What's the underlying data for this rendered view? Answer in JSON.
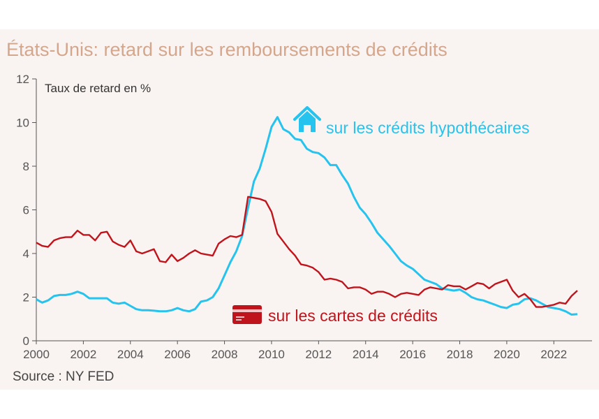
{
  "title": "États-Unis: retard sur les remboursements de crédits",
  "source": "Source : NY FED",
  "colors": {
    "mortgage": "#25c3ee",
    "credit_cards": "#c0141c",
    "title": "#d4a78d",
    "axis": "#555555"
  },
  "icons": {
    "mortgage": "house-icon",
    "credit_cards": "credit-card-icon"
  },
  "chart_data": {
    "type": "line",
    "title": "États-Unis: retard sur les remboursements de crédits",
    "xlabel": "",
    "ylabel": "Taux de retard en %",
    "xlim": [
      2000,
      2023.1
    ],
    "ylim": [
      0,
      12
    ],
    "xticks": [
      2000,
      2002,
      2004,
      2006,
      2008,
      2010,
      2012,
      2014,
      2016,
      2018,
      2020,
      2022
    ],
    "yticks": [
      0,
      2,
      4,
      6,
      8,
      10,
      12
    ],
    "grid": false,
    "series": [
      {
        "name": "sur les crédits hypothécaires",
        "color": "#25c3ee",
        "x": [
          2000.0,
          2000.25,
          2000.5,
          2000.75,
          2001.0,
          2001.25,
          2001.5,
          2001.75,
          2002.0,
          2002.25,
          2002.5,
          2002.75,
          2003.0,
          2003.25,
          2003.5,
          2003.75,
          2004.0,
          2004.25,
          2004.5,
          2004.75,
          2005.0,
          2005.25,
          2005.5,
          2005.75,
          2006.0,
          2006.25,
          2006.5,
          2006.75,
          2007.0,
          2007.25,
          2007.5,
          2007.75,
          2008.0,
          2008.25,
          2008.5,
          2008.75,
          2009.0,
          2009.25,
          2009.5,
          2009.75,
          2010.0,
          2010.25,
          2010.5,
          2010.75,
          2011.0,
          2011.25,
          2011.5,
          2011.75,
          2012.0,
          2012.25,
          2012.5,
          2012.75,
          2013.0,
          2013.25,
          2013.5,
          2013.75,
          2014.0,
          2014.25,
          2014.5,
          2014.75,
          2015.0,
          2015.25,
          2015.5,
          2015.75,
          2016.0,
          2016.25,
          2016.5,
          2016.75,
          2017.0,
          2017.25,
          2017.5,
          2017.75,
          2018.0,
          2018.25,
          2018.5,
          2018.75,
          2019.0,
          2019.25,
          2019.5,
          2019.75,
          2020.0,
          2020.25,
          2020.5,
          2020.75,
          2021.0,
          2021.25,
          2021.5,
          2021.75,
          2022.0,
          2022.25,
          2022.5,
          2022.75,
          2023.0
        ],
        "values": [
          1.9,
          1.75,
          1.85,
          2.05,
          2.1,
          2.1,
          2.15,
          2.25,
          2.15,
          1.95,
          1.95,
          1.95,
          1.95,
          1.75,
          1.7,
          1.75,
          1.6,
          1.45,
          1.4,
          1.4,
          1.38,
          1.35,
          1.35,
          1.4,
          1.5,
          1.4,
          1.35,
          1.45,
          1.8,
          1.85,
          2.0,
          2.4,
          3.0,
          3.6,
          4.1,
          4.8,
          6.1,
          7.3,
          7.9,
          8.8,
          9.8,
          10.25,
          9.7,
          9.55,
          9.25,
          9.2,
          8.8,
          8.65,
          8.6,
          8.4,
          8.05,
          8.05,
          7.6,
          7.2,
          6.6,
          6.1,
          5.8,
          5.4,
          4.95,
          4.65,
          4.35,
          4.0,
          3.65,
          3.45,
          3.3,
          3.05,
          2.8,
          2.7,
          2.6,
          2.4,
          2.35,
          2.3,
          2.35,
          2.2,
          2.0,
          1.9,
          1.85,
          1.75,
          1.65,
          1.55,
          1.5,
          1.65,
          1.7,
          1.9,
          1.95,
          1.85,
          1.7,
          1.55,
          1.5,
          1.45,
          1.35,
          1.2,
          1.22
        ]
      },
      {
        "name": "sur les cartes de crédits",
        "color": "#c0141c",
        "x": [
          2000.0,
          2000.25,
          2000.5,
          2000.75,
          2001.0,
          2001.25,
          2001.5,
          2001.75,
          2002.0,
          2002.25,
          2002.5,
          2002.75,
          2003.0,
          2003.25,
          2003.5,
          2003.75,
          2004.0,
          2004.25,
          2004.5,
          2004.75,
          2005.0,
          2005.25,
          2005.5,
          2005.75,
          2006.0,
          2006.25,
          2006.5,
          2006.75,
          2007.0,
          2007.25,
          2007.5,
          2007.75,
          2008.0,
          2008.25,
          2008.5,
          2008.75,
          2009.0,
          2009.25,
          2009.5,
          2009.75,
          2010.0,
          2010.25,
          2010.5,
          2010.75,
          2011.0,
          2011.25,
          2011.5,
          2011.75,
          2012.0,
          2012.25,
          2012.5,
          2012.75,
          2013.0,
          2013.25,
          2013.5,
          2013.75,
          2014.0,
          2014.25,
          2014.5,
          2014.75,
          2015.0,
          2015.25,
          2015.5,
          2015.75,
          2016.0,
          2016.25,
          2016.5,
          2016.75,
          2017.0,
          2017.25,
          2017.5,
          2017.75,
          2018.0,
          2018.25,
          2018.5,
          2018.75,
          2019.0,
          2019.25,
          2019.5,
          2019.75,
          2020.0,
          2020.25,
          2020.5,
          2020.75,
          2021.0,
          2021.25,
          2021.5,
          2021.75,
          2022.0,
          2022.25,
          2022.5,
          2022.75,
          2023.0
        ],
        "values": [
          4.5,
          4.35,
          4.3,
          4.6,
          4.7,
          4.75,
          4.75,
          5.05,
          4.85,
          4.85,
          4.6,
          4.95,
          5.0,
          4.55,
          4.4,
          4.3,
          4.6,
          4.1,
          4.0,
          4.1,
          4.2,
          3.65,
          3.6,
          3.95,
          3.65,
          3.8,
          4.0,
          4.15,
          4.0,
          3.95,
          3.9,
          4.45,
          4.65,
          4.8,
          4.75,
          4.85,
          6.6,
          6.55,
          6.5,
          6.4,
          5.9,
          4.9,
          4.55,
          4.2,
          3.9,
          3.5,
          3.45,
          3.35,
          3.15,
          2.8,
          2.85,
          2.8,
          2.7,
          2.4,
          2.45,
          2.45,
          2.35,
          2.15,
          2.25,
          2.25,
          2.15,
          2.0,
          2.15,
          2.2,
          2.15,
          2.1,
          2.35,
          2.45,
          2.4,
          2.35,
          2.55,
          2.5,
          2.5,
          2.35,
          2.5,
          2.65,
          2.6,
          2.4,
          2.6,
          2.7,
          2.8,
          2.3,
          2.0,
          2.15,
          1.9,
          1.55,
          1.55,
          1.6,
          1.65,
          1.75,
          1.7,
          2.05,
          2.3
        ]
      }
    ],
    "annotations": [
      {
        "series": 0,
        "text": "sur les crédits hypothécaires",
        "icon": "house-icon"
      },
      {
        "series": 1,
        "text": "sur les cartes de crédits",
        "icon": "credit-card-icon"
      }
    ]
  }
}
